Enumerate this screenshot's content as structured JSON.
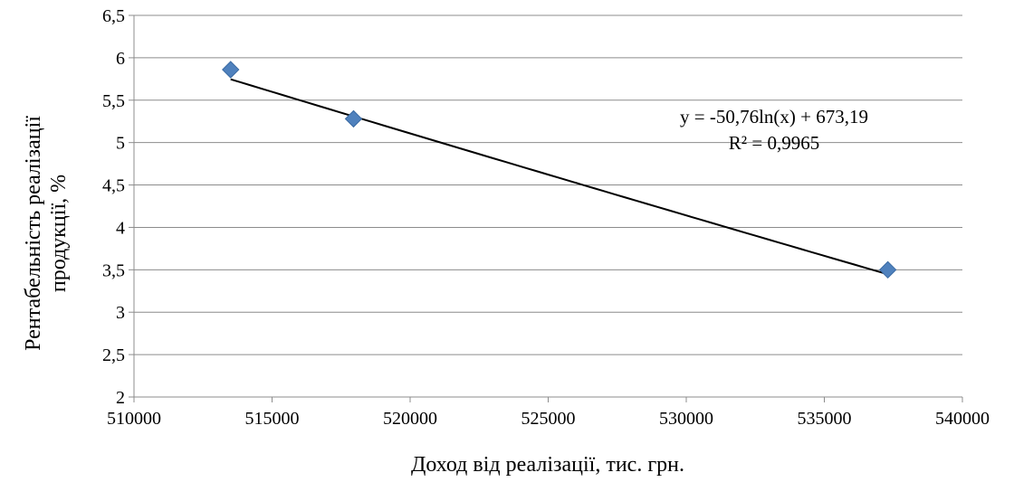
{
  "chart_data": {
    "type": "scatter",
    "xlabel": "Доход від реалізації, тис. грн.",
    "ylabel_line1": "Рентабельність реалізації",
    "ylabel_line2": "продукції, %",
    "xlim": [
      510000,
      540000
    ],
    "ylim": [
      2,
      6.5
    ],
    "x_ticks": [
      510000,
      515000,
      520000,
      525000,
      530000,
      535000,
      540000
    ],
    "x_tick_labels": [
      "510000",
      "515000",
      "520000",
      "525000",
      "530000",
      "535000",
      "540000"
    ],
    "y_ticks": [
      2,
      2.5,
      3,
      3.5,
      4,
      4.5,
      5,
      5.5,
      6,
      6.5
    ],
    "y_tick_labels": [
      "2",
      "2,5",
      "3",
      "3,5",
      "4",
      "4,5",
      "5",
      "5,5",
      "6",
      "6,5"
    ],
    "grid": "horizontal",
    "marker": "diamond",
    "marker_color": "#4f81bd",
    "trendline_color": "#000000",
    "series": [
      {
        "points": [
          {
            "x": 513500,
            "y": 5.86
          },
          {
            "x": 517950,
            "y": 5.28
          },
          {
            "x": 537300,
            "y": 3.5
          }
        ]
      }
    ],
    "trendline": {
      "type": "logarithmic",
      "a": -50.76,
      "b": 673.19,
      "x_range": [
        513500,
        537300
      ],
      "equation": "y = -50,76ln(x) + 673,19",
      "r_squared": "R² = 0,9965"
    }
  }
}
